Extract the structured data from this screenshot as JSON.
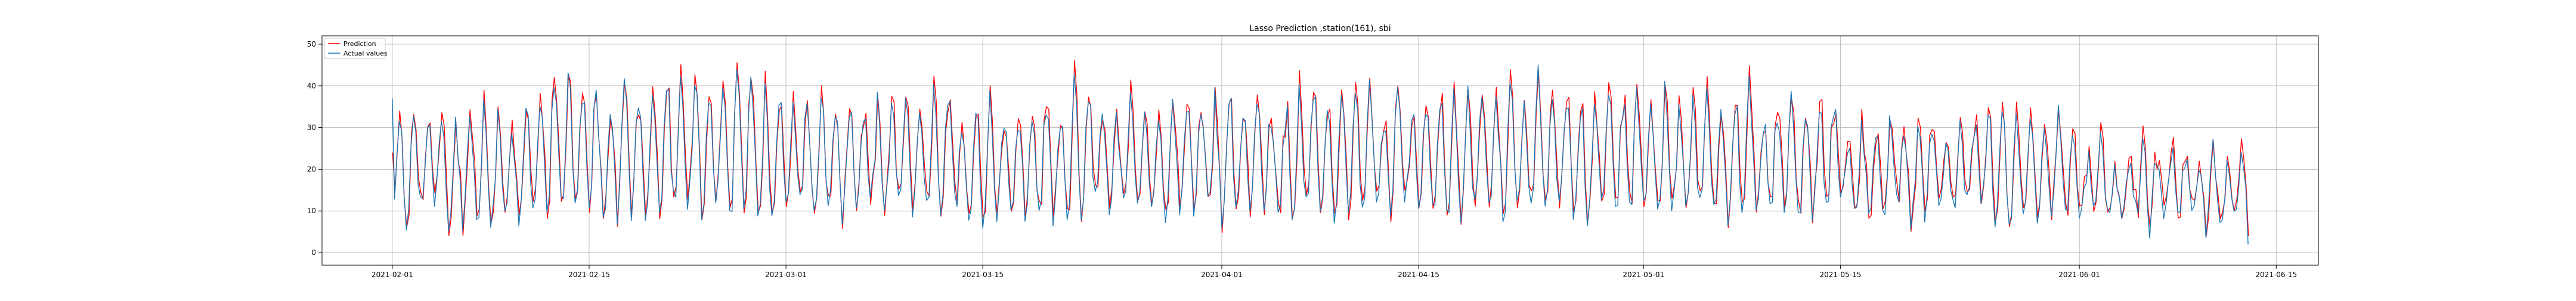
{
  "chart_data": {
    "type": "line",
    "title": "Lasso Prediction ,station(161), sbi",
    "xlabel": "",
    "ylabel": "",
    "x_range": [
      "2021-01-27",
      "2021-06-18"
    ],
    "ylim": [
      -3,
      52
    ],
    "x_ticks": [
      "2021-02-01",
      "2021-02-15",
      "2021-03-01",
      "2021-03-15",
      "2021-04-01",
      "2021-04-15",
      "2021-05-01",
      "2021-05-15",
      "2021-06-01",
      "2021-06-15"
    ],
    "y_ticks": [
      0,
      10,
      20,
      30,
      40,
      50
    ],
    "grid": true,
    "legend_position": "top-left",
    "data_span": [
      "2021-02-01",
      "2021-06-13"
    ],
    "series": [
      {
        "name": "Prediction",
        "color": "#ff0000",
        "x": [
          "2021-02-01",
          "2021-02-06",
          "2021-02-11",
          "2021-02-16",
          "2021-02-21",
          "2021-02-26",
          "2021-03-03",
          "2021-03-08",
          "2021-03-13",
          "2021-03-18",
          "2021-03-23",
          "2021-03-28",
          "2021-04-02",
          "2021-04-07",
          "2021-04-12",
          "2021-04-17",
          "2021-04-22",
          "2021-04-27",
          "2021-05-02",
          "2021-05-07",
          "2021-05-12",
          "2021-05-17",
          "2021-05-22",
          "2021-05-27",
          "2021-06-01",
          "2021-06-06",
          "2021-06-11",
          "2021-06-13"
        ],
        "values": [
          24,
          22,
          30,
          28,
          20,
          25,
          22,
          18,
          21,
          23,
          24,
          22,
          25,
          20,
          23,
          26,
          18,
          22,
          27,
          25,
          24,
          20,
          22,
          26,
          19,
          18,
          17,
          4
        ]
      },
      {
        "name": "Actual values",
        "color": "#1f77b4",
        "x": [
          "2021-02-01",
          "2021-02-06",
          "2021-02-11",
          "2021-02-16",
          "2021-02-21",
          "2021-02-26",
          "2021-03-03",
          "2021-03-08",
          "2021-03-13",
          "2021-03-18",
          "2021-03-23",
          "2021-03-28",
          "2021-04-02",
          "2021-04-07",
          "2021-04-12",
          "2021-04-17",
          "2021-04-22",
          "2021-04-27",
          "2021-05-02",
          "2021-05-07",
          "2021-05-12",
          "2021-05-17",
          "2021-05-22",
          "2021-05-27",
          "2021-06-01",
          "2021-06-06",
          "2021-06-11",
          "2021-06-13"
        ],
        "values": [
          37,
          23,
          31,
          29,
          21,
          26,
          23,
          17,
          22,
          24,
          25,
          21,
          26,
          21,
          24,
          27,
          17,
          23,
          28,
          26,
          25,
          19,
          23,
          27,
          18,
          17,
          16,
          2
        ]
      }
    ],
    "wave": {
      "cycle_hours": 24,
      "daily_min": 3,
      "daily_max_by_period": [
        {
          "from": "2021-02-01",
          "max": 33
        },
        {
          "from": "2021-02-10",
          "max": 42
        },
        {
          "from": "2021-03-01",
          "max": 37
        },
        {
          "from": "2021-03-15",
          "max": 38
        },
        {
          "from": "2021-04-01",
          "max": 39
        },
        {
          "from": "2021-04-15",
          "max": 40
        },
        {
          "from": "2021-05-01",
          "max": 38
        },
        {
          "from": "2021-05-15",
          "max": 31
        },
        {
          "from": "2021-06-01",
          "max": 24
        }
      ]
    }
  }
}
